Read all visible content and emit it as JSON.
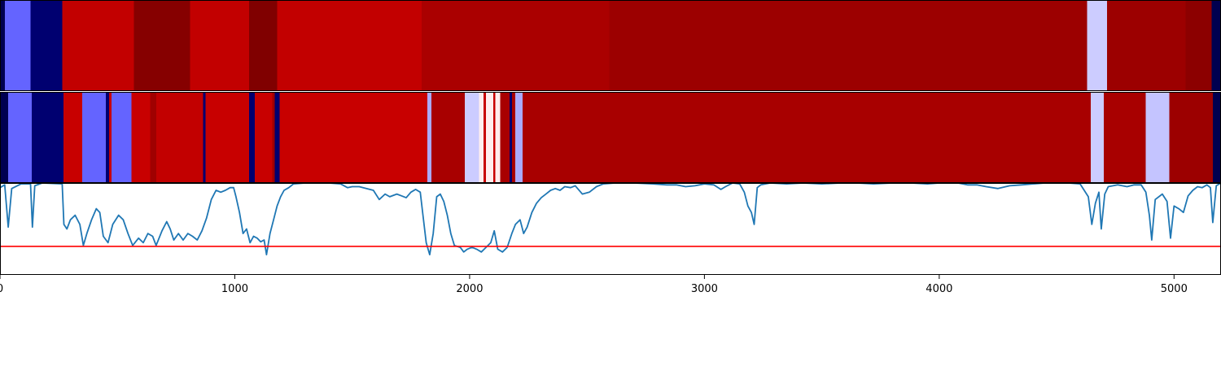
{
  "chart_data": [
    {
      "type": "heatmap",
      "xlim": [
        0,
        5200
      ],
      "segments": [
        {
          "x0": 0,
          "x1": 20,
          "color": "#000050"
        },
        {
          "x0": 20,
          "x1": 130,
          "color": "#6464ff"
        },
        {
          "x0": 130,
          "x1": 265,
          "color": "#000070"
        },
        {
          "x0": 265,
          "x1": 570,
          "color": "#c20000"
        },
        {
          "x0": 570,
          "x1": 810,
          "color": "#860000"
        },
        {
          "x0": 810,
          "x1": 1060,
          "color": "#c20000"
        },
        {
          "x0": 1060,
          "x1": 1180,
          "color": "#800000"
        },
        {
          "x0": 1180,
          "x1": 1795,
          "color": "#c20000"
        },
        {
          "x0": 1795,
          "x1": 2595,
          "color": "#aa0000"
        },
        {
          "x0": 2595,
          "x1": 4630,
          "color": "#9c0000"
        },
        {
          "x0": 4630,
          "x1": 4715,
          "color": "#ccccff"
        },
        {
          "x0": 4715,
          "x1": 5050,
          "color": "#9c0000"
        },
        {
          "x0": 5050,
          "x1": 5160,
          "color": "#8c0000"
        },
        {
          "x0": 5160,
          "x1": 5200,
          "color": "#000050"
        }
      ]
    },
    {
      "type": "heatmap",
      "xlim": [
        0,
        5200
      ],
      "segments": [
        {
          "x0": 0,
          "x1": 35,
          "color": "#000050"
        },
        {
          "x0": 35,
          "x1": 135,
          "color": "#6464ff"
        },
        {
          "x0": 135,
          "x1": 270,
          "color": "#000070"
        },
        {
          "x0": 270,
          "x1": 350,
          "color": "#c80000"
        },
        {
          "x0": 350,
          "x1": 450,
          "color": "#6464ff"
        },
        {
          "x0": 450,
          "x1": 465,
          "color": "#000070"
        },
        {
          "x0": 465,
          "x1": 475,
          "color": "#c80000"
        },
        {
          "x0": 475,
          "x1": 560,
          "color": "#6464ff"
        },
        {
          "x0": 560,
          "x1": 640,
          "color": "#c80000"
        },
        {
          "x0": 640,
          "x1": 665,
          "color": "#a00000"
        },
        {
          "x0": 665,
          "x1": 865,
          "color": "#c20000"
        },
        {
          "x0": 865,
          "x1": 875,
          "color": "#000070"
        },
        {
          "x0": 875,
          "x1": 1060,
          "color": "#c80000"
        },
        {
          "x0": 1060,
          "x1": 1085,
          "color": "#000070"
        },
        {
          "x0": 1085,
          "x1": 1160,
          "color": "#c80000"
        },
        {
          "x0": 1160,
          "x1": 1170,
          "color": "#a00000"
        },
        {
          "x0": 1170,
          "x1": 1190,
          "color": "#000070"
        },
        {
          "x0": 1190,
          "x1": 1820,
          "color": "#c80000"
        },
        {
          "x0": 1820,
          "x1": 1838,
          "color": "#aaaaff"
        },
        {
          "x0": 1838,
          "x1": 1980,
          "color": "#a80000"
        },
        {
          "x0": 1980,
          "x1": 2040,
          "color": "#ccccff"
        },
        {
          "x0": 2040,
          "x1": 2060,
          "color": "#ffeeee"
        },
        {
          "x0": 2060,
          "x1": 2070,
          "color": "#c80000"
        },
        {
          "x0": 2070,
          "x1": 2100,
          "color": "#ffeeee"
        },
        {
          "x0": 2100,
          "x1": 2110,
          "color": "#c80000"
        },
        {
          "x0": 2110,
          "x1": 2130,
          "color": "#ffeeee"
        },
        {
          "x0": 2130,
          "x1": 2170,
          "color": "#a80000"
        },
        {
          "x0": 2170,
          "x1": 2180,
          "color": "#000070"
        },
        {
          "x0": 2180,
          "x1": 2195,
          "color": "#a80000"
        },
        {
          "x0": 2195,
          "x1": 2225,
          "color": "#aaaaff"
        },
        {
          "x0": 2225,
          "x1": 4645,
          "color": "#a80000"
        },
        {
          "x0": 4645,
          "x1": 4700,
          "color": "#ccccff"
        },
        {
          "x0": 4700,
          "x1": 4880,
          "color": "#a80000"
        },
        {
          "x0": 4880,
          "x1": 4980,
          "color": "#c4c4ff"
        },
        {
          "x0": 4980,
          "x1": 5165,
          "color": "#9c0000"
        },
        {
          "x0": 5165,
          "x1": 5200,
          "color": "#000050"
        }
      ]
    },
    {
      "type": "line",
      "xlim": [
        0,
        5200
      ],
      "ylim": [
        0,
        1
      ],
      "xticks": [
        0,
        1000,
        2000,
        3000,
        4000,
        5000
      ],
      "series_color": "#1f77b4",
      "threshold": {
        "y": 0.31,
        "color": "#ff0000"
      },
      "points": [
        [
          0,
          0.95
        ],
        [
          20,
          0.98
        ],
        [
          35,
          0.52
        ],
        [
          50,
          0.94
        ],
        [
          90,
          0.99
        ],
        [
          130,
          0.99
        ],
        [
          138,
          0.52
        ],
        [
          148,
          0.97
        ],
        [
          180,
          1.0
        ],
        [
          265,
          0.99
        ],
        [
          272,
          0.55
        ],
        [
          285,
          0.5
        ],
        [
          300,
          0.6
        ],
        [
          320,
          0.65
        ],
        [
          340,
          0.55
        ],
        [
          355,
          0.32
        ],
        [
          370,
          0.45
        ],
        [
          390,
          0.6
        ],
        [
          410,
          0.72
        ],
        [
          425,
          0.68
        ],
        [
          440,
          0.42
        ],
        [
          460,
          0.35
        ],
        [
          480,
          0.55
        ],
        [
          505,
          0.65
        ],
        [
          525,
          0.6
        ],
        [
          545,
          0.45
        ],
        [
          565,
          0.32
        ],
        [
          590,
          0.4
        ],
        [
          610,
          0.35
        ],
        [
          630,
          0.45
        ],
        [
          650,
          0.42
        ],
        [
          665,
          0.32
        ],
        [
          690,
          0.48
        ],
        [
          710,
          0.58
        ],
        [
          725,
          0.5
        ],
        [
          740,
          0.38
        ],
        [
          760,
          0.45
        ],
        [
          780,
          0.38
        ],
        [
          800,
          0.45
        ],
        [
          820,
          0.42
        ],
        [
          840,
          0.38
        ],
        [
          860,
          0.48
        ],
        [
          880,
          0.62
        ],
        [
          900,
          0.82
        ],
        [
          920,
          0.92
        ],
        [
          940,
          0.9
        ],
        [
          960,
          0.92
        ],
        [
          980,
          0.95
        ],
        [
          995,
          0.95
        ],
        [
          1005,
          0.85
        ],
        [
          1020,
          0.68
        ],
        [
          1035,
          0.45
        ],
        [
          1050,
          0.5
        ],
        [
          1065,
          0.35
        ],
        [
          1080,
          0.42
        ],
        [
          1095,
          0.4
        ],
        [
          1110,
          0.36
        ],
        [
          1125,
          0.38
        ],
        [
          1135,
          0.22
        ],
        [
          1150,
          0.45
        ],
        [
          1165,
          0.6
        ],
        [
          1180,
          0.75
        ],
        [
          1195,
          0.85
        ],
        [
          1210,
          0.92
        ],
        [
          1230,
          0.95
        ],
        [
          1250,
          0.99
        ],
        [
          1300,
          1.0
        ],
        [
          1350,
          1.0
        ],
        [
          1400,
          1.0
        ],
        [
          1450,
          0.99
        ],
        [
          1480,
          0.95
        ],
        [
          1500,
          0.96
        ],
        [
          1530,
          0.96
        ],
        [
          1560,
          0.94
        ],
        [
          1590,
          0.92
        ],
        [
          1615,
          0.82
        ],
        [
          1640,
          0.88
        ],
        [
          1660,
          0.85
        ],
        [
          1690,
          0.88
        ],
        [
          1710,
          0.86
        ],
        [
          1730,
          0.84
        ],
        [
          1750,
          0.9
        ],
        [
          1770,
          0.93
        ],
        [
          1790,
          0.9
        ],
        [
          1800,
          0.68
        ],
        [
          1815,
          0.35
        ],
        [
          1830,
          0.22
        ],
        [
          1845,
          0.45
        ],
        [
          1860,
          0.85
        ],
        [
          1875,
          0.88
        ],
        [
          1890,
          0.8
        ],
        [
          1905,
          0.65
        ],
        [
          1920,
          0.45
        ],
        [
          1935,
          0.32
        ],
        [
          1960,
          0.3
        ],
        [
          1975,
          0.25
        ],
        [
          1990,
          0.28
        ],
        [
          2010,
          0.3
        ],
        [
          2030,
          0.28
        ],
        [
          2050,
          0.25
        ],
        [
          2070,
          0.3
        ],
        [
          2090,
          0.35
        ],
        [
          2105,
          0.48
        ],
        [
          2120,
          0.28
        ],
        [
          2140,
          0.25
        ],
        [
          2160,
          0.3
        ],
        [
          2180,
          0.45
        ],
        [
          2195,
          0.55
        ],
        [
          2215,
          0.6
        ],
        [
          2230,
          0.45
        ],
        [
          2245,
          0.52
        ],
        [
          2265,
          0.68
        ],
        [
          2285,
          0.78
        ],
        [
          2305,
          0.84
        ],
        [
          2325,
          0.88
        ],
        [
          2345,
          0.92
        ],
        [
          2365,
          0.94
        ],
        [
          2385,
          0.92
        ],
        [
          2405,
          0.96
        ],
        [
          2430,
          0.95
        ],
        [
          2450,
          0.97
        ],
        [
          2480,
          0.88
        ],
        [
          2510,
          0.9
        ],
        [
          2540,
          0.96
        ],
        [
          2570,
          0.99
        ],
        [
          2620,
          1.0
        ],
        [
          2700,
          1.0
        ],
        [
          2780,
          0.99
        ],
        [
          2840,
          0.98
        ],
        [
          2880,
          0.98
        ],
        [
          2920,
          0.96
        ],
        [
          2960,
          0.97
        ],
        [
          3000,
          0.99
        ],
        [
          3040,
          0.98
        ],
        [
          3070,
          0.93
        ],
        [
          3090,
          0.96
        ],
        [
          3120,
          1.0
        ],
        [
          3150,
          0.99
        ],
        [
          3170,
          0.9
        ],
        [
          3185,
          0.75
        ],
        [
          3200,
          0.68
        ],
        [
          3212,
          0.55
        ],
        [
          3225,
          0.95
        ],
        [
          3240,
          0.98
        ],
        [
          3280,
          1.0
        ],
        [
          3350,
          0.99
        ],
        [
          3420,
          1.0
        ],
        [
          3500,
          0.99
        ],
        [
          3580,
          1.0
        ],
        [
          3650,
          1.0
        ],
        [
          3720,
          0.99
        ],
        [
          3800,
          1.0
        ],
        [
          3880,
          1.0
        ],
        [
          3950,
          0.99
        ],
        [
          4000,
          1.0
        ],
        [
          4080,
          1.0
        ],
        [
          4120,
          0.98
        ],
        [
          4160,
          0.98
        ],
        [
          4200,
          0.96
        ],
        [
          4250,
          0.94
        ],
        [
          4300,
          0.97
        ],
        [
          4350,
          0.98
        ],
        [
          4400,
          0.99
        ],
        [
          4450,
          1.0
        ],
        [
          4500,
          1.0
        ],
        [
          4550,
          1.0
        ],
        [
          4600,
          0.99
        ],
        [
          4635,
          0.85
        ],
        [
          4650,
          0.55
        ],
        [
          4665,
          0.78
        ],
        [
          4680,
          0.9
        ],
        [
          4690,
          0.5
        ],
        [
          4705,
          0.88
        ],
        [
          4720,
          0.96
        ],
        [
          4760,
          0.98
        ],
        [
          4800,
          0.96
        ],
        [
          4830,
          0.98
        ],
        [
          4860,
          0.98
        ],
        [
          4880,
          0.9
        ],
        [
          4895,
          0.65
        ],
        [
          4905,
          0.38
        ],
        [
          4920,
          0.82
        ],
        [
          4950,
          0.88
        ],
        [
          4970,
          0.8
        ],
        [
          4985,
          0.4
        ],
        [
          5000,
          0.75
        ],
        [
          5020,
          0.72
        ],
        [
          5040,
          0.68
        ],
        [
          5060,
          0.86
        ],
        [
          5080,
          0.92
        ],
        [
          5100,
          0.96
        ],
        [
          5120,
          0.95
        ],
        [
          5140,
          0.98
        ],
        [
          5155,
          0.95
        ],
        [
          5165,
          0.57
        ],
        [
          5180,
          0.97
        ],
        [
          5200,
          1.0
        ]
      ]
    }
  ]
}
